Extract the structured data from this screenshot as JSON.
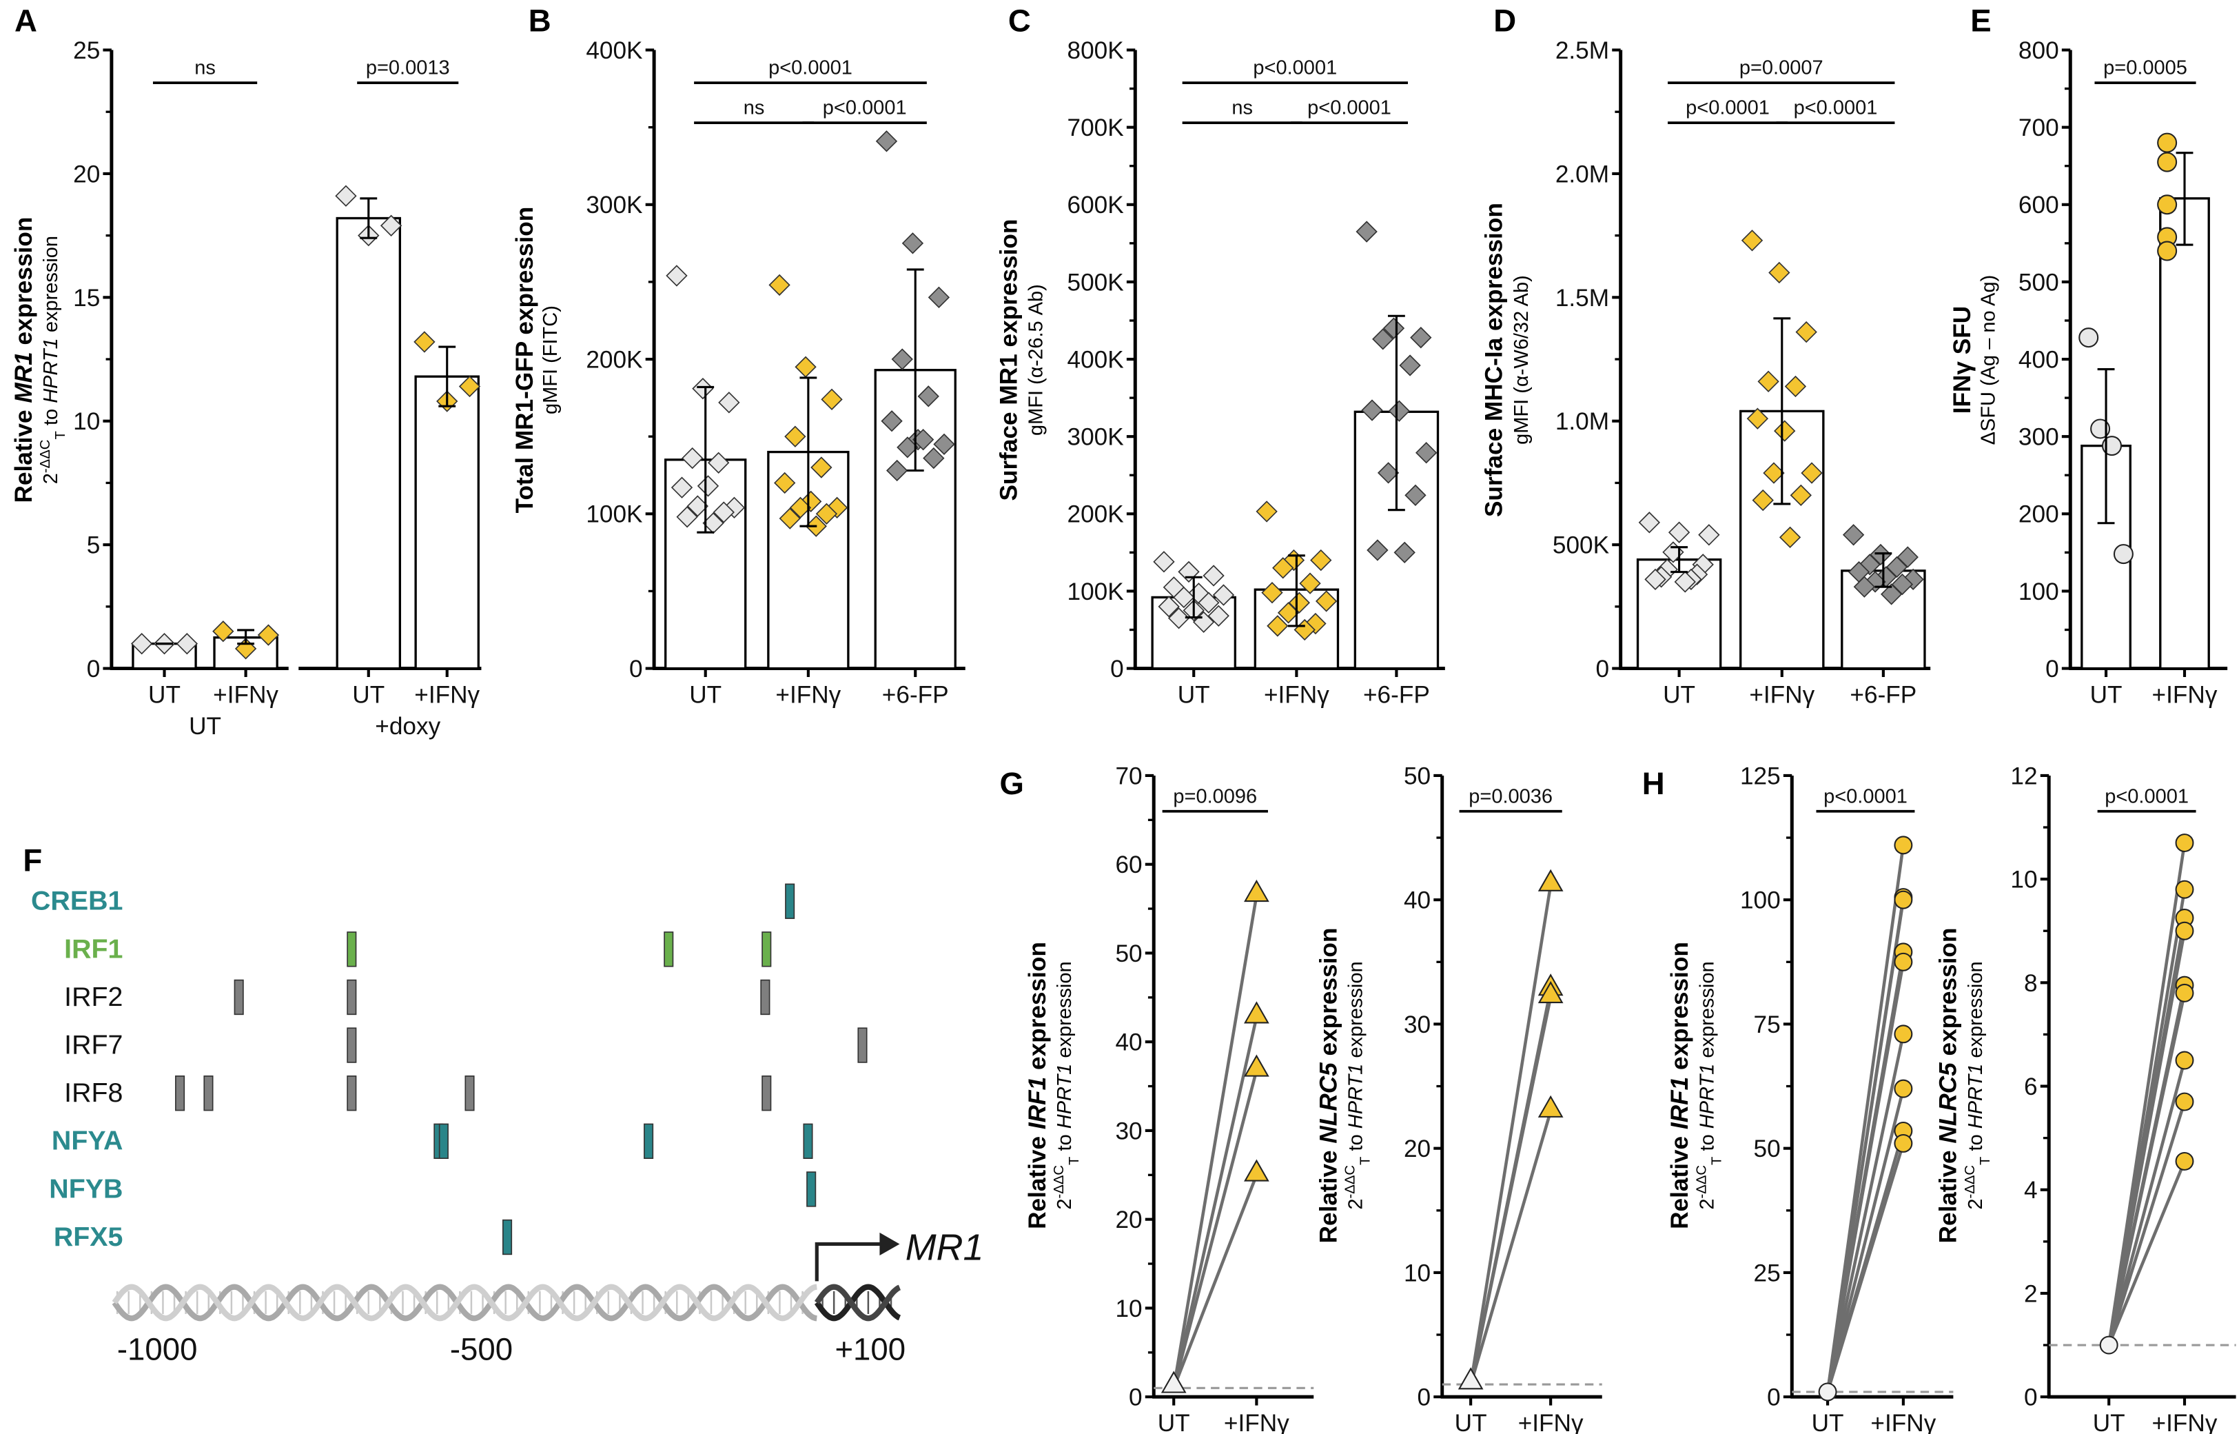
{
  "panel_letters": [
    "A",
    "B",
    "C",
    "D",
    "E",
    "F",
    "G",
    "H"
  ],
  "colors": {
    "light": "#e8e8e8",
    "yellow": "#f4c430",
    "dark": "#8e8e8e",
    "teal": "#2a8589",
    "teal_text": "#2b8a8e",
    "green": "#6ab04c",
    "site_gray": "#7f7f7f"
  },
  "chart_data": [
    {
      "id": "A",
      "type": "bar",
      "marker": "diamond",
      "ylabel": [
        {
          "t": "Relative "
        },
        {
          "t": "MR1",
          "s": "i"
        },
        {
          "t": " expression"
        }
      ],
      "ysub": [
        {
          "t": "2"
        },
        {
          "t": "-ΔΔC",
          "s": "sup"
        },
        {
          "t": "T",
          "s": "sub"
        },
        {
          "t": " to "
        },
        {
          "t": "HPRT1",
          "s": "i"
        },
        {
          "t": " expression"
        }
      ],
      "ylim": [
        0,
        25
      ],
      "yticks": [
        0,
        5,
        10,
        15,
        20,
        25
      ],
      "ytick_labels": [
        "0",
        "5",
        "10",
        "15",
        "20",
        "25"
      ],
      "categories": [
        "UT",
        "+IFNγ",
        "UT",
        "+IFNγ"
      ],
      "groups": [
        {
          "label": "UT",
          "span": [
            0,
            1
          ]
        },
        {
          "label": "+doxy",
          "span": [
            2,
            3
          ]
        }
      ],
      "point_colors": [
        "light",
        "yellow",
        "light",
        "yellow"
      ],
      "means": [
        1.0,
        1.25,
        18.2,
        11.8
      ],
      "errors": [
        [
          1.0,
          1.0
        ],
        [
          1.0,
          1.55
        ],
        [
          17.4,
          19.0
        ],
        [
          10.6,
          13.0
        ]
      ],
      "points": [
        [
          1.0,
          1.0,
          1.0
        ],
        [
          1.5,
          1.35,
          0.8
        ],
        [
          19.1,
          17.9,
          17.5
        ],
        [
          13.2,
          11.4,
          10.8
        ]
      ],
      "significance": [
        {
          "label": "ns",
          "from": 0,
          "to": 1,
          "level": 0
        },
        {
          "label": "p=0.0013",
          "from": 2,
          "to": 3,
          "level": 0
        }
      ]
    },
    {
      "id": "B",
      "type": "bar",
      "marker": "diamond",
      "ylabel": [
        {
          "t": "Total MR1-GFP expression"
        }
      ],
      "ysub": [
        {
          "t": "gMFI (FITC)"
        }
      ],
      "ylim": [
        0,
        400
      ],
      "yunit": "K",
      "yticks": [
        0,
        100,
        200,
        300,
        400
      ],
      "ytick_labels": [
        "0",
        "100K",
        "200K",
        "300K",
        "400K"
      ],
      "categories": [
        "UT",
        "+IFNγ",
        "+6-FP"
      ],
      "point_colors": [
        "light",
        "yellow",
        "dark"
      ],
      "means": [
        135,
        140,
        193
      ],
      "errors": [
        [
          88,
          182
        ],
        [
          92,
          188
        ],
        [
          128,
          258
        ]
      ],
      "points": [
        [
          254,
          181,
          172,
          136,
          133,
          117,
          118,
          104,
          105,
          101,
          98,
          94
        ],
        [
          248,
          195,
          174,
          150,
          130,
          120,
          108,
          104,
          104,
          100,
          97,
          92
        ],
        [
          341,
          275,
          240,
          200,
          176,
          160,
          148,
          145,
          143,
          136,
          128,
          148
        ]
      ],
      "significance": [
        {
          "label": "p<0.0001",
          "from": 0,
          "to": 2,
          "level": 0
        },
        {
          "label": "ns",
          "from": 0,
          "to": 1,
          "level": 1
        },
        {
          "label": "p<0.0001",
          "from": 1,
          "to": 2,
          "level": 1
        }
      ]
    },
    {
      "id": "C",
      "type": "bar",
      "marker": "diamond",
      "ylabel": [
        {
          "t": "Surface MR1 expression"
        }
      ],
      "ysub": [
        {
          "t": "gMFI (α-26.5 Ab)"
        }
      ],
      "ylim": [
        0,
        800
      ],
      "yunit": "K",
      "yticks": [
        0,
        100,
        200,
        300,
        400,
        500,
        600,
        700,
        800
      ],
      "ytick_labels": [
        "0",
        "100K",
        "200K",
        "300K",
        "400K",
        "500K",
        "600K",
        "700K",
        "800K"
      ],
      "categories": [
        "UT",
        "+IFNγ",
        "+6-FP"
      ],
      "point_colors": [
        "light",
        "yellow",
        "dark"
      ],
      "means": [
        92,
        102,
        332
      ],
      "errors": [
        [
          66,
          118
        ],
        [
          55,
          146
        ],
        [
          205,
          456
        ]
      ],
      "points": [
        [
          138,
          125,
          120,
          105,
          97,
          95,
          92,
          85,
          80,
          75,
          68,
          65,
          60
        ],
        [
          203,
          140,
          140,
          130,
          110,
          98,
          85,
          87,
          72,
          58,
          55,
          50
        ],
        [
          565,
          440,
          428,
          426,
          392,
          334,
          333,
          279,
          253,
          224,
          153,
          150
        ]
      ],
      "significance": [
        {
          "label": "p<0.0001",
          "from": 0,
          "to": 2,
          "level": 0
        },
        {
          "label": "ns",
          "from": 0,
          "to": 1,
          "level": 1
        },
        {
          "label": "p<0.0001",
          "from": 1,
          "to": 2,
          "level": 1
        }
      ]
    },
    {
      "id": "D",
      "type": "bar",
      "marker": "diamond",
      "ylabel": [
        {
          "t": "Surface MHC-Ia expression"
        }
      ],
      "ysub": [
        {
          "t": "gMFI (α-W6/32 Ab)"
        }
      ],
      "ylim": [
        0,
        2.5
      ],
      "yunit": "M",
      "yticks": [
        0,
        0.5,
        1.0,
        1.5,
        2.0,
        2.5
      ],
      "ytick_labels": [
        "0",
        "500K",
        "1.0M",
        "1.5M",
        "2.0M",
        "2.5M"
      ],
      "categories": [
        "UT",
        "+IFNγ",
        "+6-FP"
      ],
      "point_colors": [
        "light",
        "yellow",
        "dark"
      ],
      "means": [
        0.44,
        1.04,
        0.395
      ],
      "errors": [
        [
          0.39,
          0.49
        ],
        [
          0.665,
          1.415
        ],
        [
          0.33,
          0.465
        ]
      ],
      "points": [
        [
          0.59,
          0.55,
          0.54,
          0.47,
          0.42,
          0.4,
          0.38,
          0.37,
          0.36,
          0.36,
          0.35
        ],
        [
          1.73,
          1.6,
          1.36,
          1.16,
          1.14,
          1.01,
          0.96,
          0.79,
          0.79,
          0.7,
          0.68,
          0.53
        ],
        [
          0.54,
          0.46,
          0.45,
          0.42,
          0.41,
          0.39,
          0.37,
          0.36,
          0.35,
          0.34,
          0.33,
          0.3
        ]
      ],
      "significance": [
        {
          "label": "p=0.0007",
          "from": 0,
          "to": 2,
          "level": 0
        },
        {
          "label": "p<0.0001",
          "from": 0,
          "to": 1,
          "level": 1
        },
        {
          "label": "p<0.0001",
          "from": 1,
          "to": 2,
          "level": 1
        }
      ]
    },
    {
      "id": "E",
      "type": "bar",
      "marker": "circle",
      "ylabel": [
        {
          "t": "IFNγ SFU"
        }
      ],
      "ysub": [
        {
          "t": "ΔSFU (Ag – no Ag)"
        }
      ],
      "ylim": [
        0,
        800
      ],
      "yticks": [
        0,
        100,
        200,
        300,
        400,
        500,
        600,
        700,
        800
      ],
      "ytick_labels": [
        "0",
        "100",
        "200",
        "300",
        "400",
        "500",
        "600",
        "700",
        "800"
      ],
      "categories": [
        "UT",
        "+IFNγ"
      ],
      "point_colors": [
        "light",
        "yellow"
      ],
      "means": [
        288,
        608
      ],
      "errors": [
        [
          188,
          387
        ],
        [
          548,
          667
        ]
      ],
      "points": [
        [
          428,
          310,
          288,
          148
        ],
        [
          680,
          655,
          600,
          558,
          540
        ]
      ],
      "significance": [
        {
          "label": "p=0.0005",
          "from": 0,
          "to": 1,
          "level": 0
        }
      ]
    },
    {
      "id": "G1",
      "type": "line",
      "marker": "triangle",
      "ylabel": [
        {
          "t": "Relative "
        },
        {
          "t": "IRF1",
          "s": "i"
        },
        {
          "t": " expression"
        }
      ],
      "ysub": [
        {
          "t": "2"
        },
        {
          "t": "-ΔΔC",
          "s": "sup"
        },
        {
          "t": "T",
          "s": "sub"
        },
        {
          "t": " to "
        },
        {
          "t": "HPRT1",
          "s": "i"
        },
        {
          "t": " expression"
        }
      ],
      "ylim": [
        0,
        70
      ],
      "yticks": [
        0,
        10,
        20,
        30,
        40,
        50,
        60,
        70
      ],
      "ytick_labels": [
        "0",
        "10",
        "20",
        "30",
        "40",
        "50",
        "60",
        "70"
      ],
      "categories": [
        "UT",
        "+IFNγ"
      ],
      "baseline": 1,
      "ut_value": 1,
      "ifn_values": [
        56.5,
        42.8,
        36.8,
        25.0
      ],
      "significance": [
        {
          "label": "p=0.0096",
          "from": 0,
          "to": 1,
          "level": 0
        }
      ]
    },
    {
      "id": "G2",
      "type": "line",
      "marker": "triangle",
      "ylabel": [
        {
          "t": "Relative "
        },
        {
          "t": "NLRC5",
          "s": "i"
        },
        {
          "t": " expression"
        }
      ],
      "ysub": [
        {
          "t": "2"
        },
        {
          "t": "-ΔΔC",
          "s": "sup"
        },
        {
          "t": "T",
          "s": "sub"
        },
        {
          "t": " to "
        },
        {
          "t": "HPRT1",
          "s": "i"
        },
        {
          "t": " expression"
        }
      ],
      "ylim": [
        0,
        50
      ],
      "yticks": [
        0,
        10,
        20,
        30,
        40,
        50
      ],
      "ytick_labels": [
        "0",
        "10",
        "20",
        "30",
        "40",
        "50"
      ],
      "categories": [
        "UT",
        "+IFNγ"
      ],
      "baseline": 1,
      "ut_value": 1,
      "ifn_values": [
        41.2,
        32.8,
        32.2,
        23.0
      ],
      "significance": [
        {
          "label": "p=0.0036",
          "from": 0,
          "to": 1,
          "level": 0
        }
      ]
    },
    {
      "id": "H1",
      "type": "line",
      "marker": "circle",
      "ylabel": [
        {
          "t": "Relative "
        },
        {
          "t": "IRF1",
          "s": "i"
        },
        {
          "t": " expression"
        }
      ],
      "ysub": [
        {
          "t": "2"
        },
        {
          "t": "-ΔΔC",
          "s": "sup"
        },
        {
          "t": "T",
          "s": "sub"
        },
        {
          "t": " to "
        },
        {
          "t": "HPRT1",
          "s": "i"
        },
        {
          "t": " expression"
        }
      ],
      "ylim": [
        0,
        125
      ],
      "yticks": [
        0,
        25,
        50,
        75,
        100,
        125
      ],
      "ytick_labels": [
        "0",
        "25",
        "50",
        "75",
        "100",
        "125"
      ],
      "categories": [
        "UT",
        "+IFNγ"
      ],
      "baseline": 1,
      "ut_value": 1,
      "ifn_values": [
        111,
        100.5,
        100,
        89.5,
        87.5,
        73,
        62,
        53.5,
        51
      ],
      "significance": [
        {
          "label": "p<0.0001",
          "from": 0,
          "to": 1,
          "level": 0
        }
      ]
    },
    {
      "id": "H2",
      "type": "line",
      "marker": "circle",
      "ylabel": [
        {
          "t": "Relative "
        },
        {
          "t": "NLRC5",
          "s": "i"
        },
        {
          "t": " expression"
        }
      ],
      "ysub": [
        {
          "t": "2"
        },
        {
          "t": "-ΔΔC",
          "s": "sup"
        },
        {
          "t": "T",
          "s": "sub"
        },
        {
          "t": " to "
        },
        {
          "t": "HPRT1",
          "s": "i"
        },
        {
          "t": " expression"
        }
      ],
      "ylim": [
        0,
        12
      ],
      "yticks": [
        0,
        2,
        4,
        6,
        8,
        10,
        12
      ],
      "ytick_labels": [
        "0",
        "2",
        "4",
        "6",
        "8",
        "10",
        "12"
      ],
      "categories": [
        "UT",
        "+IFNγ"
      ],
      "baseline": 1,
      "ut_value": 1,
      "ifn_values": [
        10.7,
        9.8,
        9.25,
        9.0,
        7.95,
        7.8,
        6.5,
        5.7,
        4.55
      ],
      "significance": [
        {
          "label": "p<0.0001",
          "from": 0,
          "to": 1,
          "level": 0
        }
      ]
    }
  ],
  "promoter": {
    "gene": "MR1",
    "axis_labels": [
      {
        "t": "-1000",
        "bp": -1000
      },
      {
        "t": "-500",
        "bp": -500
      },
      {
        "t": "+100",
        "bp": 100
      }
    ],
    "rows": [
      {
        "tf": "CREB1",
        "label_color": "teal_text",
        "box_color": "teal",
        "bold": true,
        "sites": [
          -24
        ]
      },
      {
        "tf": "IRF1",
        "label_color": "green",
        "box_color": "green",
        "bold": true,
        "sites": [
          -700,
          -211,
          -60
        ]
      },
      {
        "tf": "IRF2",
        "label_color": "#111111",
        "box_color": "site_gray",
        "bold": false,
        "sites": [
          -874,
          -700,
          -62
        ]
      },
      {
        "tf": "IRF7",
        "label_color": "#111111",
        "box_color": "site_gray",
        "bold": false,
        "sites": [
          -700,
          88
        ]
      },
      {
        "tf": "IRF8",
        "label_color": "#111111",
        "box_color": "site_gray",
        "bold": false,
        "sites": [
          -965,
          -921,
          -700,
          -518,
          -60
        ]
      },
      {
        "tf": "NFYA",
        "label_color": "teal_text",
        "box_color": "teal",
        "bold": true,
        "sites": [
          -566,
          -558,
          -242,
          4
        ]
      },
      {
        "tf": "NFYB",
        "label_color": "teal_text",
        "box_color": "teal",
        "bold": true,
        "sites": [
          9
        ]
      },
      {
        "tf": "RFX5",
        "label_color": "teal_text",
        "box_color": "teal",
        "bold": true,
        "sites": [
          -460
        ]
      }
    ]
  }
}
